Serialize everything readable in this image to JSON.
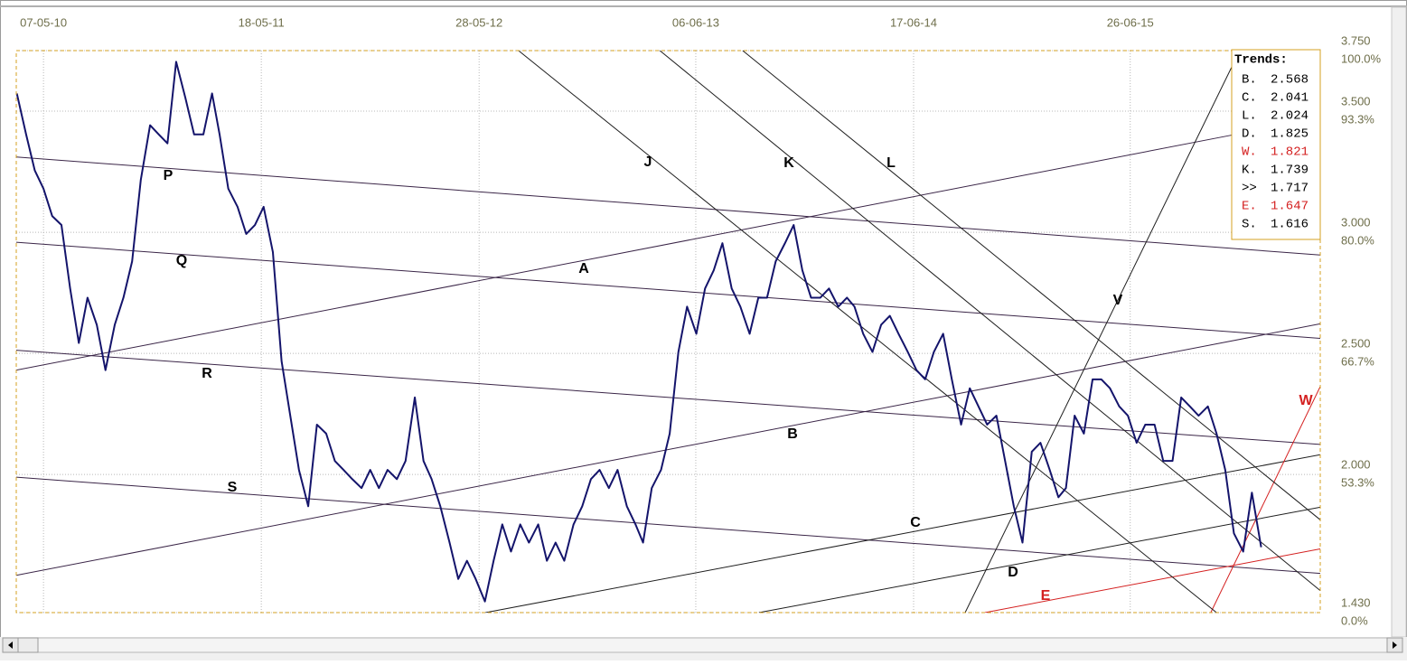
{
  "chart_data": {
    "type": "line",
    "xlim": [
      "2010-03-21",
      "2016-05-19"
    ],
    "xticks": [
      {
        "value": "2010-05-07",
        "label": "07-05-10"
      },
      {
        "value": "2011-05-18",
        "label": "18-05-11"
      },
      {
        "value": "2012-05-28",
        "label": "28-05-12"
      },
      {
        "value": "2013-06-06",
        "label": "06-06-13"
      },
      {
        "value": "2014-06-17",
        "label": "17-06-14"
      },
      {
        "value": "2015-06-26",
        "label": "26-06-15"
      }
    ],
    "ylim": [
      1.43,
      3.75
    ],
    "yticks": [
      {
        "value": 3.75,
        "label": "3.750"
      },
      {
        "value": 3.5,
        "label": "3.500"
      },
      {
        "value": 3,
        "label": "3.000"
      },
      {
        "value": 2.5,
        "label": "2.500"
      },
      {
        "value": 2,
        "label": "2.000"
      },
      {
        "value": 1.43,
        "label": "1.430"
      }
    ],
    "ytick_percent_labels": [
      "100.0%",
      "93.3%",
      "80.0%",
      "66.7%",
      "53.3%",
      "0.0%"
    ],
    "grid": true,
    "x": [
      "2010-03-22",
      "2010-04-07",
      "2010-04-22",
      "2010-05-07",
      "2010-05-22",
      "2010-06-07",
      "2010-06-22",
      "2010-07-07",
      "2010-07-22",
      "2010-08-07",
      "2010-08-22",
      "2010-09-07",
      "2010-09-22",
      "2010-10-07",
      "2010-10-22",
      "2010-11-07",
      "2010-11-22",
      "2010-12-07",
      "2010-12-22",
      "2011-01-07",
      "2011-01-22",
      "2011-02-07",
      "2011-02-22",
      "2011-03-07",
      "2011-03-22",
      "2011-04-07",
      "2011-04-22",
      "2011-05-07",
      "2011-05-22",
      "2011-06-07",
      "2011-06-22",
      "2011-07-07",
      "2011-07-22",
      "2011-08-07",
      "2011-08-22",
      "2011-09-07",
      "2011-09-22",
      "2011-10-07",
      "2011-10-22",
      "2011-11-07",
      "2011-11-22",
      "2011-12-07",
      "2011-12-22",
      "2012-01-07",
      "2012-01-22",
      "2012-02-07",
      "2012-02-22",
      "2012-03-07",
      "2012-03-22",
      "2012-04-07",
      "2012-04-22",
      "2012-05-07",
      "2012-05-22",
      "2012-06-07",
      "2012-06-22",
      "2012-07-07",
      "2012-07-22",
      "2012-08-07",
      "2012-08-22",
      "2012-09-07",
      "2012-09-22",
      "2012-10-07",
      "2012-10-22",
      "2012-11-07",
      "2012-11-22",
      "2012-12-07",
      "2012-12-22",
      "2013-01-07",
      "2013-01-22",
      "2013-02-07",
      "2013-02-22",
      "2013-03-07",
      "2013-03-22",
      "2013-04-07",
      "2013-04-22",
      "2013-05-07",
      "2013-05-22",
      "2013-06-07",
      "2013-06-22",
      "2013-07-07",
      "2013-07-22",
      "2013-08-07",
      "2013-08-22",
      "2013-09-07",
      "2013-09-22",
      "2013-10-07",
      "2013-10-22",
      "2013-11-07",
      "2013-11-22",
      "2013-12-07",
      "2013-12-22",
      "2014-01-07",
      "2014-01-22",
      "2014-02-07",
      "2014-02-22",
      "2014-03-07",
      "2014-03-22",
      "2014-04-07",
      "2014-04-22",
      "2014-05-07",
      "2014-05-22",
      "2014-06-07",
      "2014-06-22",
      "2014-07-07",
      "2014-07-22",
      "2014-08-07",
      "2014-08-22",
      "2014-09-07",
      "2014-09-22",
      "2014-10-07",
      "2014-10-22",
      "2014-11-07",
      "2014-11-22",
      "2014-12-07",
      "2014-12-22",
      "2015-01-07",
      "2015-01-22",
      "2015-02-07",
      "2015-02-22",
      "2015-03-07",
      "2015-03-22",
      "2015-04-07",
      "2015-04-22",
      "2015-05-07",
      "2015-05-22",
      "2015-06-07",
      "2015-06-22",
      "2015-07-07",
      "2015-07-22",
      "2015-08-07",
      "2015-08-22",
      "2015-09-07",
      "2015-09-22",
      "2015-10-07",
      "2015-10-22",
      "2015-11-07",
      "2015-11-22",
      "2015-12-07",
      "2015-12-22",
      "2016-01-07",
      "2016-01-22",
      "2016-02-07"
    ],
    "series": [
      {
        "color": "#14146b",
        "values": [
          3.573,
          3.404,
          3.255,
          3.18,
          3.067,
          3.03,
          2.768,
          2.543,
          2.73,
          2.618,
          2.431,
          2.618,
          2.73,
          2.88,
          3.217,
          3.442,
          3.404,
          3.367,
          3.704,
          3.554,
          3.404,
          3.404,
          3.573,
          3.404,
          3.18,
          3.105,
          2.993,
          3.03,
          3.105,
          2.918,
          2.468,
          2.243,
          2.019,
          1.869,
          2.206,
          2.169,
          2.056,
          2.019,
          1.981,
          1.944,
          2.019,
          1.944,
          2.019,
          1.981,
          2.056,
          2.318,
          2.056,
          1.981,
          1.869,
          1.719,
          1.569,
          1.644,
          1.569,
          1.476,
          1.644,
          1.794,
          1.682,
          1.794,
          1.719,
          1.794,
          1.644,
          1.719,
          1.644,
          1.794,
          1.869,
          1.981,
          2.019,
          1.944,
          2.019,
          1.869,
          1.794,
          1.719,
          1.944,
          2.019,
          2.169,
          2.506,
          2.693,
          2.581,
          2.768,
          2.843,
          2.955,
          2.768,
          2.693,
          2.581,
          2.73,
          2.73,
          2.88,
          2.955,
          3.03,
          2.843,
          2.73,
          2.73,
          2.768,
          2.693,
          2.73,
          2.693,
          2.581,
          2.506,
          2.618,
          2.655,
          2.581,
          2.506,
          2.431,
          2.393,
          2.506,
          2.581,
          2.393,
          2.206,
          2.356,
          2.281,
          2.206,
          2.243,
          2.056,
          1.869,
          1.719,
          2.094,
          2.131,
          2.019,
          1.906,
          1.944,
          2.243,
          2.169,
          2.393,
          2.393,
          2.356,
          2.281,
          2.243,
          2.131,
          2.206,
          2.206,
          2.056,
          2.056,
          2.318,
          2.281,
          2.243,
          2.281,
          2.169,
          2.019,
          1.757,
          1.682,
          1.925,
          1.7
        ]
      }
    ],
    "trend_lines": [
      {
        "label": "P",
        "color": "#3a2547",
        "x1": "2010-03-21",
        "y1": 3.311,
        "x2": "2016-05-19",
        "y2": 2.906
      },
      {
        "label": "Q",
        "color": "#3a2547",
        "x1": "2010-03-21",
        "y1": 2.959,
        "x2": "2016-05-19",
        "y2": 2.562
      },
      {
        "label": "R",
        "color": "#3a2547",
        "x1": "2010-03-21",
        "y1": 2.513,
        "x2": "2016-05-19",
        "y2": 2.124
      },
      {
        "label": "S",
        "color": "#3a2547",
        "x1": "2010-03-21",
        "y1": 1.989,
        "x2": "2016-05-19",
        "y2": 1.592
      },
      {
        "label": "A",
        "color": "#3a2547",
        "x1": "2010-03-21",
        "y1": 2.431,
        "x2": "2015-12-18",
        "y2": 3.401
      },
      {
        "label": "B",
        "color": "#3a2547",
        "x1": "2010-03-21",
        "y1": 1.584,
        "x2": "2016-05-19",
        "y2": 2.622
      },
      {
        "label": "C",
        "color": "#1e1e1e",
        "x1": "2012-06-08",
        "y1": 1.43,
        "x2": "2016-05-19",
        "y2": 2.082
      },
      {
        "label": "D",
        "color": "#1e1e1e",
        "x1": "2013-09-23",
        "y1": 1.43,
        "x2": "2016-05-19",
        "y2": 1.865
      },
      {
        "label": "E",
        "color": "#d42020",
        "x1": "2014-10-18",
        "y1": 1.43,
        "x2": "2016-05-19",
        "y2": 1.693
      },
      {
        "label": "V",
        "color": "#1e1e1e",
        "x1": "2014-09-14",
        "y1": 1.43,
        "x2": "2016-01-01",
        "y2": 3.75
      },
      {
        "label": "W",
        "color": "#d42020",
        "x1": "2015-11-12",
        "y1": 1.43,
        "x2": "2016-05-19",
        "y2": 2.363
      },
      {
        "label": "J",
        "color": "#1e1e1e",
        "x1": "2012-08-04",
        "y1": 3.75,
        "x2": "2015-11-22",
        "y2": 1.43
      },
      {
        "label": "K",
        "color": "#1e1e1e",
        "x1": "2013-04-05",
        "y1": 3.75,
        "x2": "2016-05-19",
        "y2": 1.521
      },
      {
        "label": "L",
        "color": "#1e1e1e",
        "x1": "2013-08-26",
        "y1": 3.75,
        "x2": "2016-05-19",
        "y2": 1.813
      }
    ],
    "trends_box": {
      "title": "Trends:",
      "rows": [
        {
          "name": "B.",
          "value": 2.568,
          "color": "#000000"
        },
        {
          "name": "C.",
          "value": 2.041,
          "color": "#000000"
        },
        {
          "name": "L.",
          "value": 2.024,
          "color": "#000000"
        },
        {
          "name": "D.",
          "value": 1.825,
          "color": "#000000"
        },
        {
          "name": "W.",
          "value": 1.821,
          "color": "#d42020"
        },
        {
          "name": "K.",
          "value": 1.739,
          "color": "#000000"
        },
        {
          "name": ">>",
          "value": 1.717,
          "color": "#000000"
        },
        {
          "name": "E.",
          "value": 1.647,
          "color": "#d42020"
        },
        {
          "name": "S.",
          "value": 1.616,
          "color": "#000000"
        }
      ]
    }
  }
}
